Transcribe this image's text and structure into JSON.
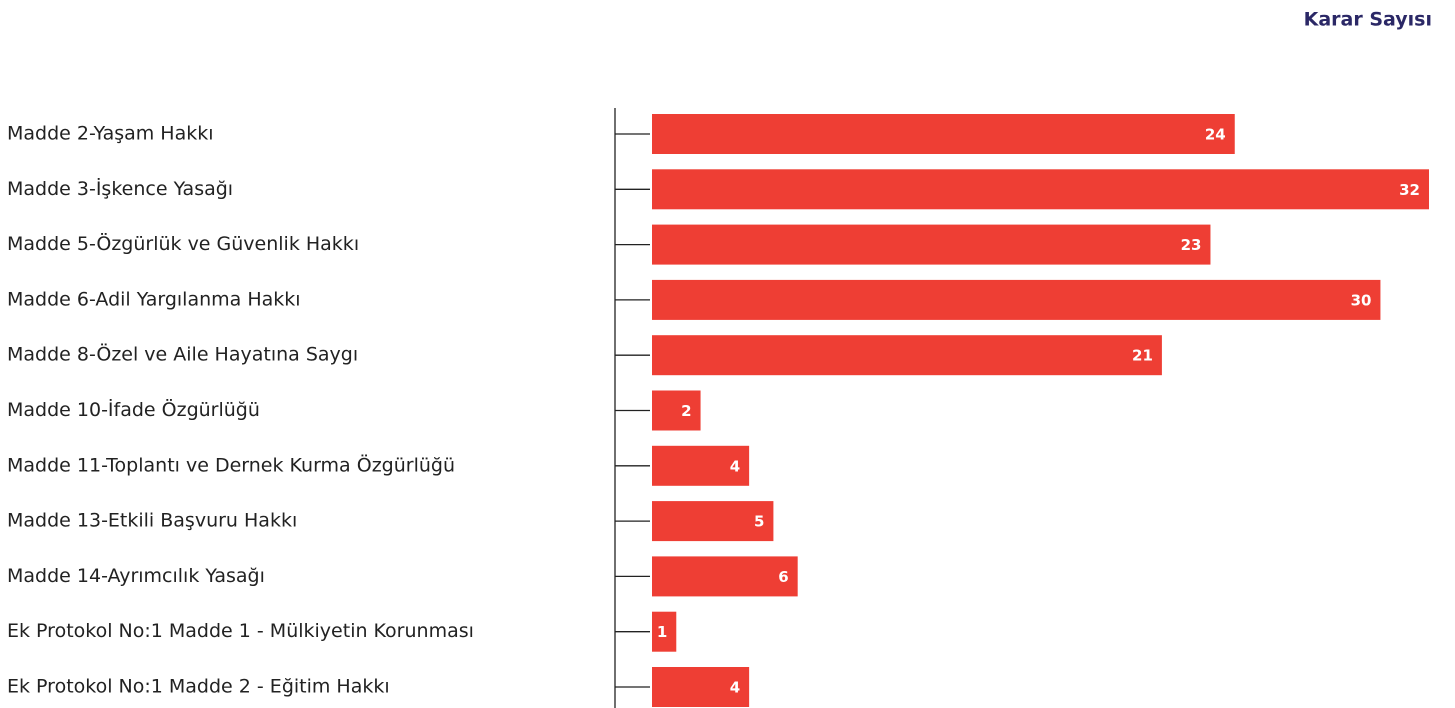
{
  "chart_data": {
    "type": "bar",
    "orientation": "horizontal",
    "title": "Karar Sayısı",
    "categories": [
      "Madde 2-Yaşam Hakkı",
      "Madde 3-İşkence Yasağı",
      "Madde 5-Özgürlük ve Güvenlik Hakkı",
      "Madde 6-Adil Yargılanma Hakkı",
      "Madde 8-Özel ve Aile Hayatına Saygı",
      "Madde 10-İfade Özgürlüğü",
      "Madde 11-Toplantı ve Dernek Kurma Özgürlüğü",
      "Madde 13-Etkili Başvuru Hakkı",
      "Madde 14-Ayrımcılık Yasağı",
      "Ek Protokol No:1 Madde 1 - Mülkiyetin Korunması",
      "Ek Protokol No:1 Madde 2 - Eğitim Hakkı"
    ],
    "values": [
      24,
      32,
      23,
      30,
      21,
      2,
      4,
      5,
      6,
      1,
      4
    ],
    "color": "#ee3e34",
    "xlim": [
      0,
      32
    ]
  }
}
